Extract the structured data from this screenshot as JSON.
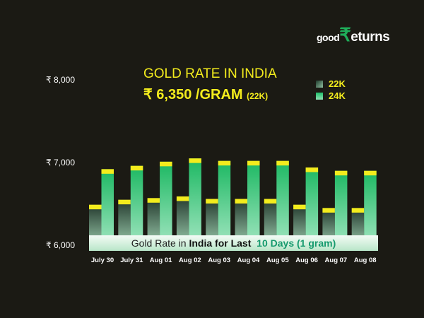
{
  "logo": {
    "part1": "good",
    "part2": "₹",
    "part3": "eturns"
  },
  "header": {
    "title": "GOLD RATE IN INDIA",
    "price": "₹ 6,350 /GRAM",
    "unit": "(22K)"
  },
  "colors": {
    "background": "#1b1a14",
    "accent_yellow": "#f3ec1d",
    "bar_24k": "#1fbf6a",
    "bar_22k": "#2f5a45"
  },
  "chart_data": {
    "type": "bar",
    "title": "Gold Rate in India for Last 10 Days (1 gram)",
    "title_parts": [
      "Gold Rate in ",
      "India for Last",
      "10 Days (1 gram)"
    ],
    "categories": [
      "July 30",
      "July 31",
      "Aug 01",
      "Aug 02",
      "Aug 03",
      "Aug 04",
      "Aug 05",
      "Aug 06",
      "Aug 07",
      "Aug 08"
    ],
    "series": [
      {
        "name": "22K",
        "values": [
          6490,
          6550,
          6570,
          6590,
          6560,
          6560,
          6560,
          6490,
          6450,
          6450
        ]
      },
      {
        "name": "24K",
        "values": [
          6920,
          6960,
          7010,
          7050,
          7020,
          7020,
          7020,
          6940,
          6900,
          6900
        ]
      }
    ],
    "yticks": [
      "₹ 8,000",
      "₹ 7,000",
      "₹ 6,000"
    ],
    "ylim": [
      6000,
      8000
    ],
    "legend_placement": "top-right",
    "grid": false
  }
}
